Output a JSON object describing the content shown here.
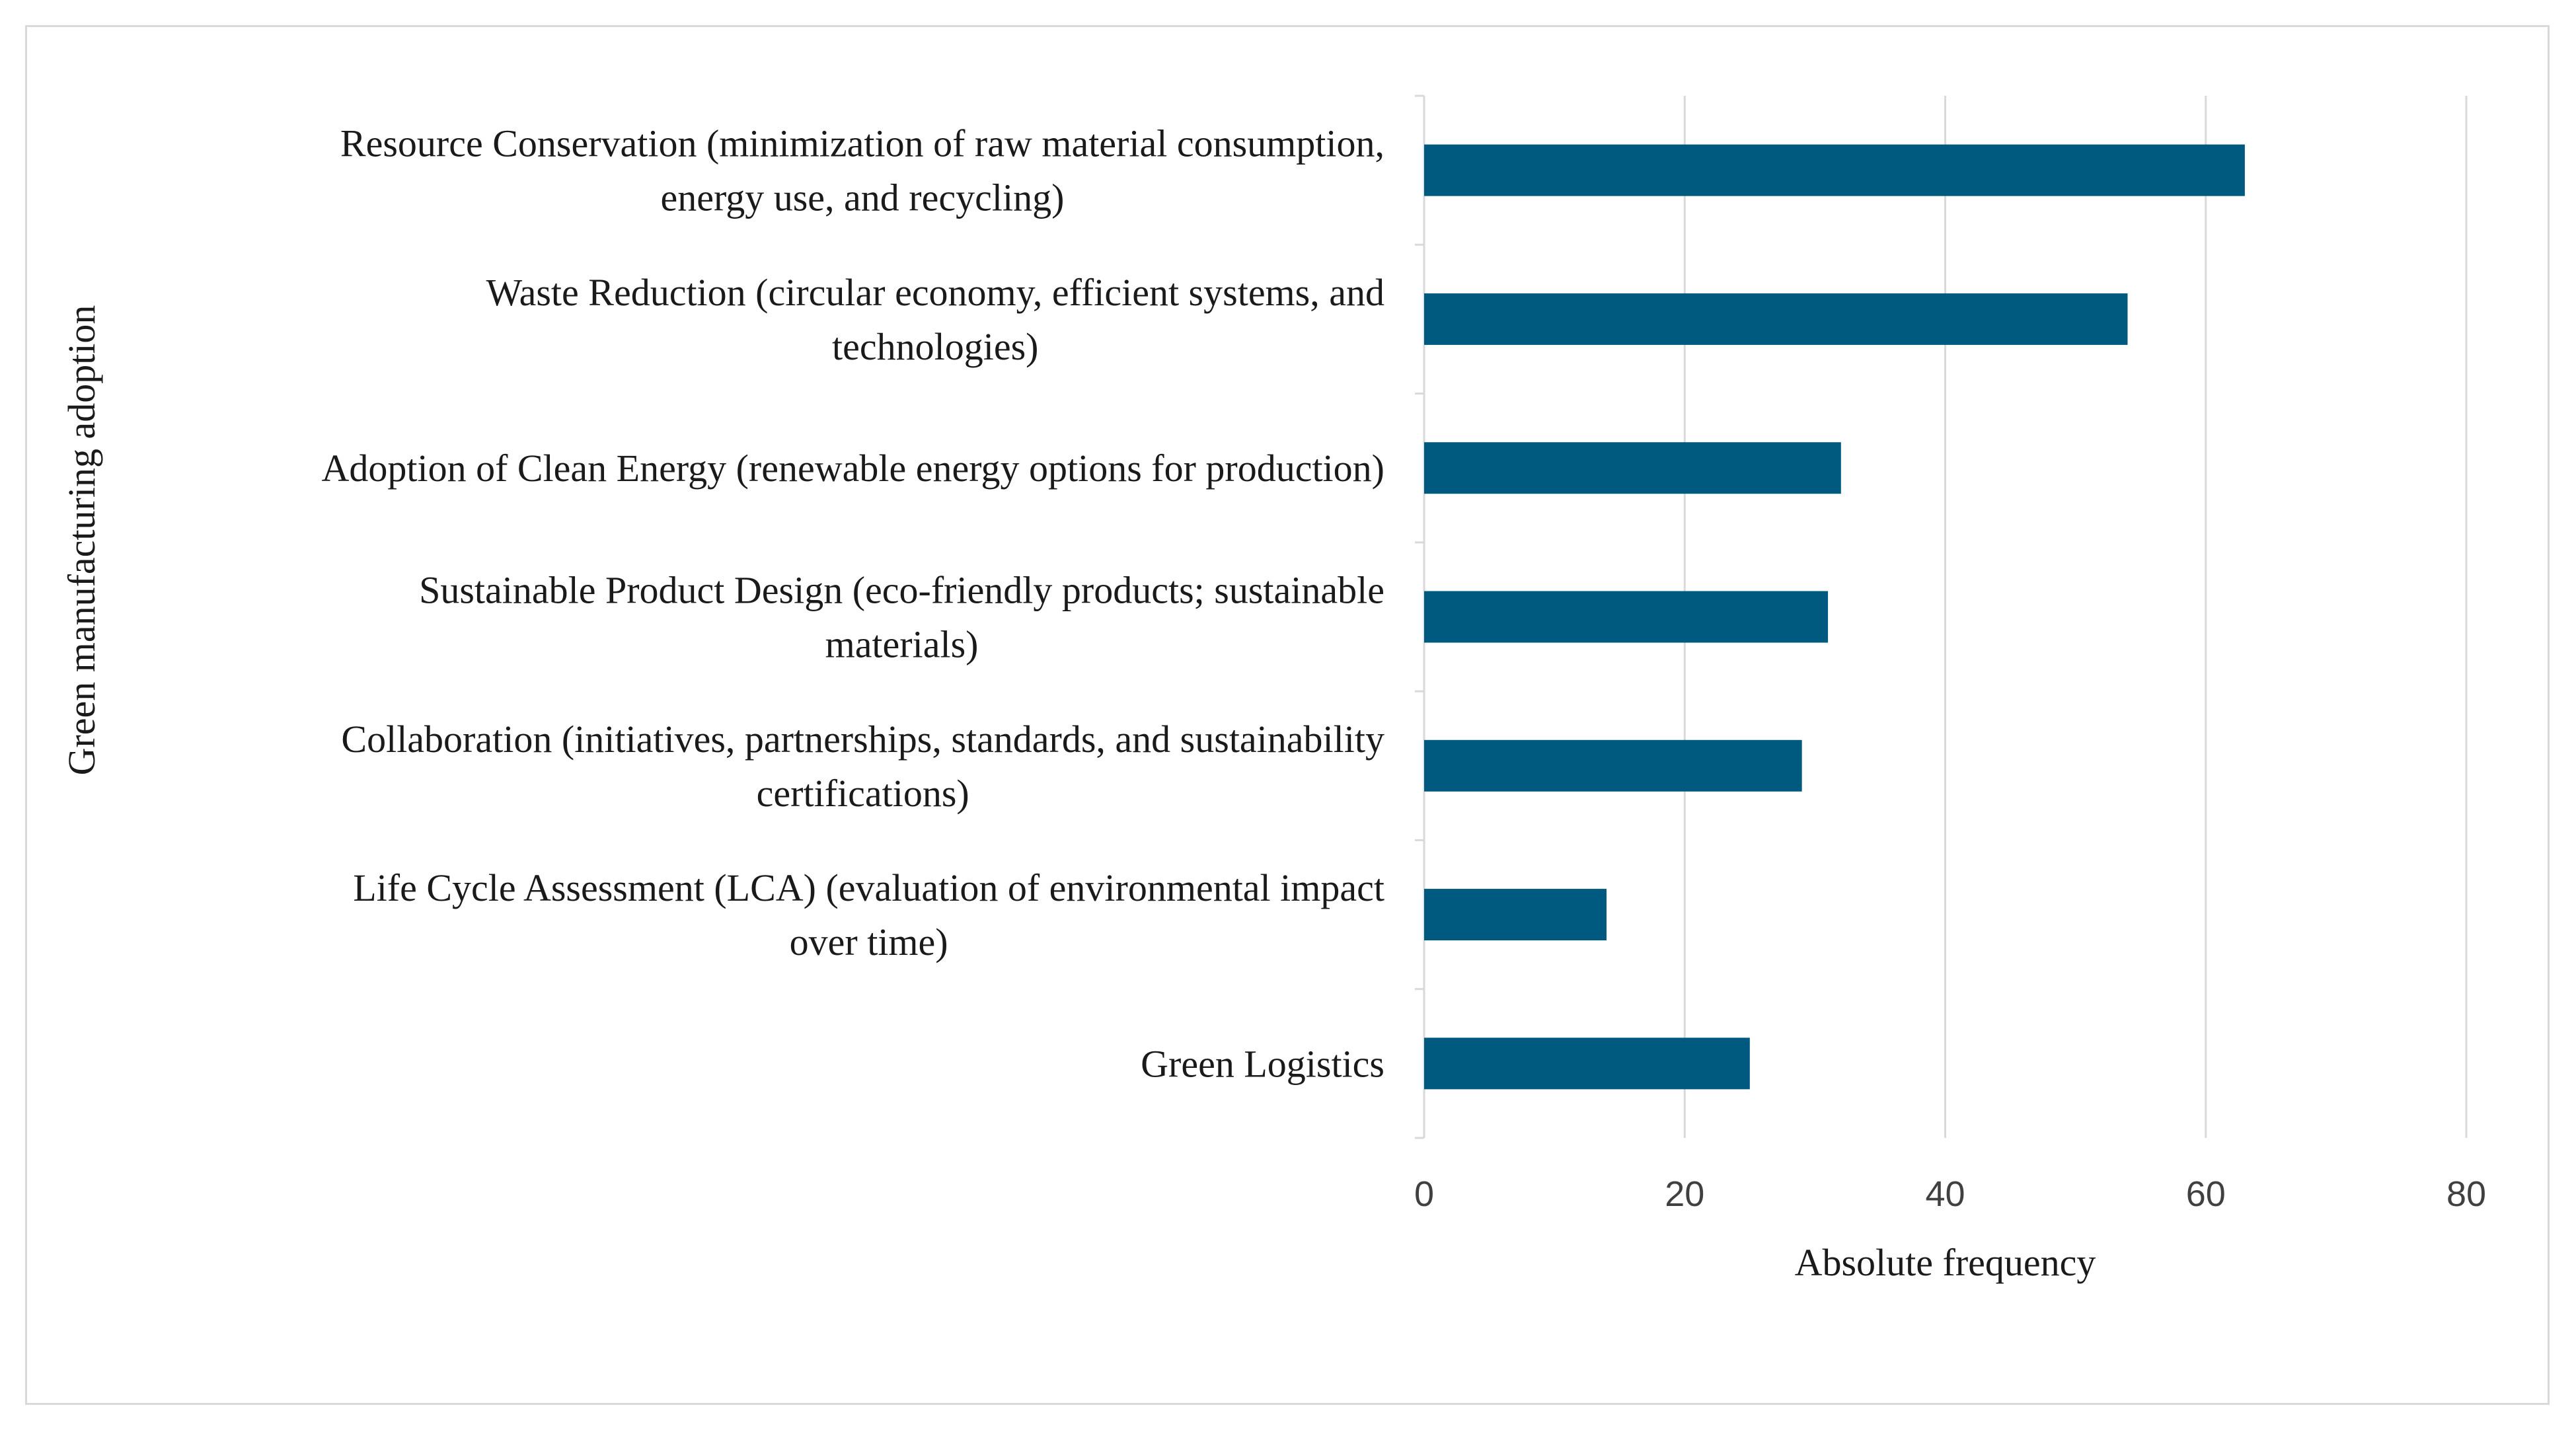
{
  "chart_data": {
    "type": "bar",
    "orientation": "horizontal",
    "title": "",
    "xlabel": "Absolute frequency",
    "ylabel": "Green manufacturing adoption",
    "xlim": [
      0,
      80
    ],
    "xticks": [
      0,
      20,
      40,
      60,
      80
    ],
    "grid": "vertical",
    "legend": "none",
    "bar_color": "#005a80",
    "categories": [
      {
        "lines": [
          "Resource Conservation (minimization of raw material consumption,",
          "energy use, and recycling)"
        ]
      },
      {
        "lines": [
          "Waste Reduction (circular economy, efficient systems, and",
          "technologies)"
        ]
      },
      {
        "lines": [
          "Adoption of Clean Energy (renewable energy options for production)"
        ]
      },
      {
        "lines": [
          "Sustainable Product Design (eco-friendly products; sustainable",
          "materials)"
        ]
      },
      {
        "lines": [
          "Collaboration (initiatives, partnerships, standards, and sustainability",
          "certifications)"
        ]
      },
      {
        "lines": [
          "Life Cycle Assessment (LCA) (evaluation of environmental impact",
          "over time)"
        ]
      },
      {
        "lines": [
          "Green Logistics"
        ]
      }
    ],
    "values": [
      63,
      54,
      32,
      31,
      29,
      14,
      25
    ]
  }
}
